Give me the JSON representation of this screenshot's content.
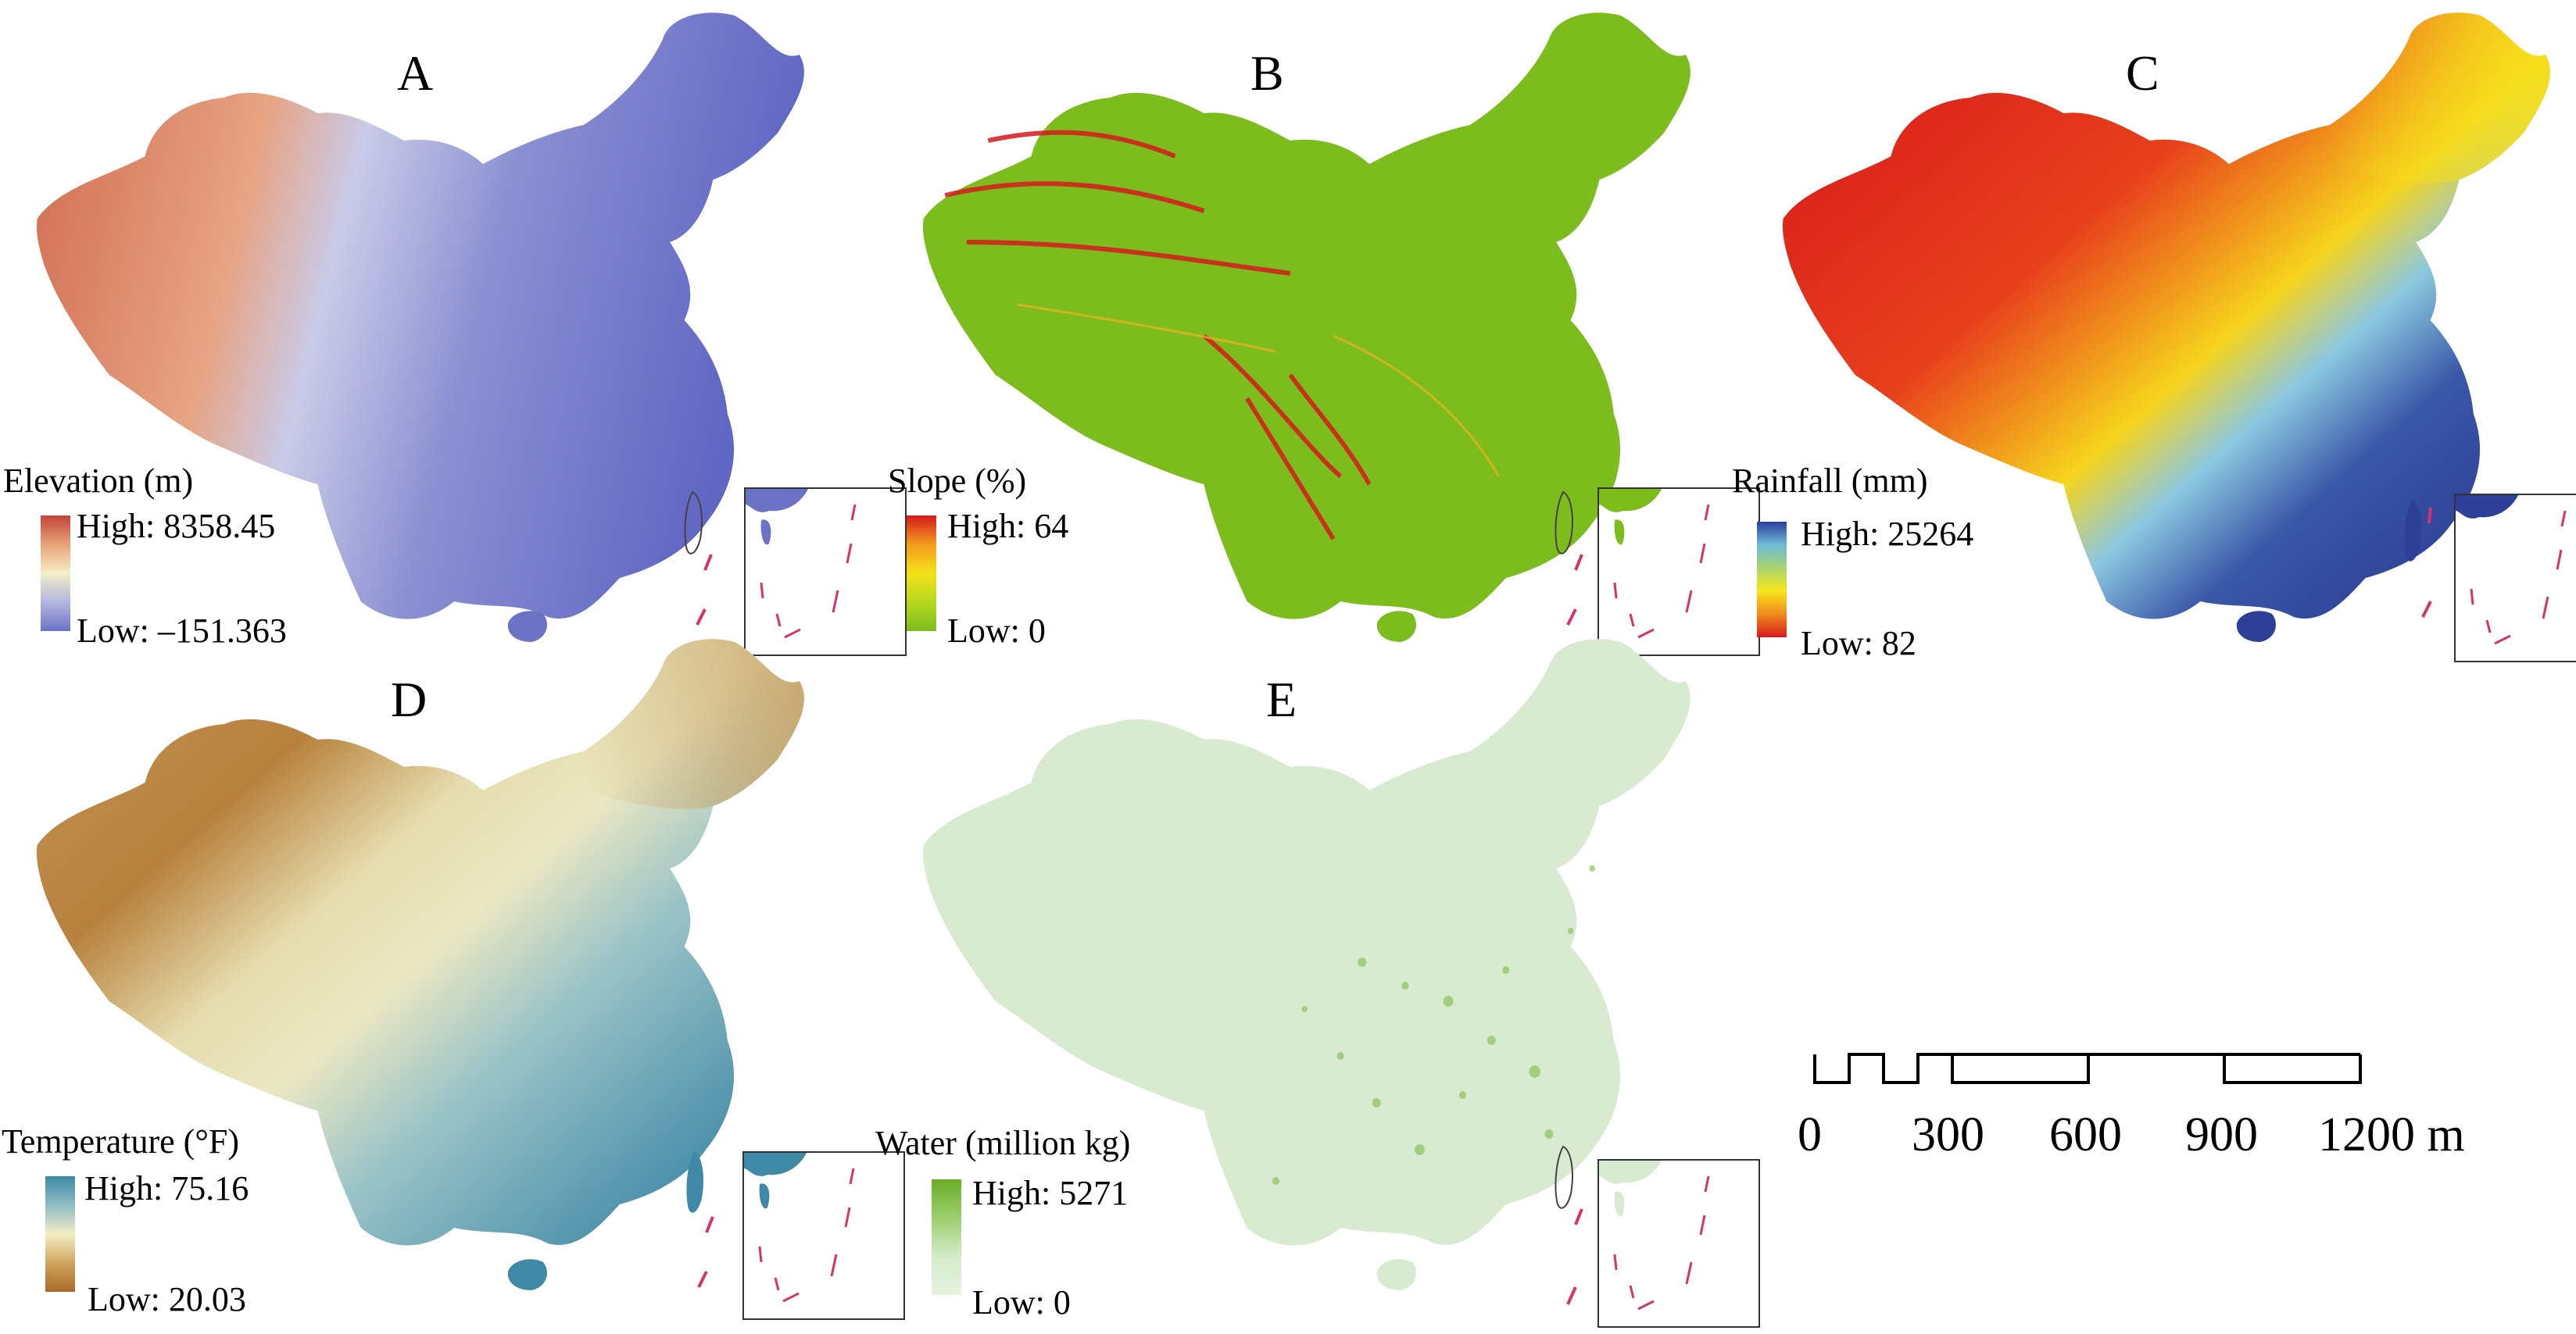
{
  "panels": [
    {
      "id": "A",
      "label": "A",
      "legend_title": "Elevation (m)",
      "high": "High: 8358.45",
      "low": "Low: –151.363",
      "gradient": [
        "#c0453a",
        "#e8a27a",
        "#f4efc6",
        "#b2b6e0",
        "#6c72c6"
      ],
      "map_fill": [
        "#d0684e",
        "#e7a484",
        "#c9cbe8",
        "#8b8fd2",
        "#6066c3"
      ]
    },
    {
      "id": "B",
      "label": "B",
      "legend_title": "Slope (%)",
      "high": "High: 64",
      "low": "Low: 0",
      "gradient": [
        "#d7191c",
        "#f39b1e",
        "#f3e21a",
        "#b6d81e",
        "#7cbc1d"
      ],
      "map_fill": [
        "#7cbc1d",
        "#86c01d",
        "#7cbc1d",
        "#7cbc1d",
        "#72b51c"
      ]
    },
    {
      "id": "C",
      "label": "C",
      "legend_title": "Rainfall (mm)",
      "high": "High: 25264",
      "low": "Low: 82",
      "gradient": [
        "#2b3f9a",
        "#6bbcd8",
        "#a9d66e",
        "#f7e51a",
        "#f08a1c",
        "#d7191c"
      ],
      "map_fill": [
        "#d7191c",
        "#f0781c",
        "#f6cf1c",
        "#8cc8e0",
        "#2e3f97"
      ]
    },
    {
      "id": "D",
      "label": "D",
      "legend_title": "Temperature (°F)",
      "high": "High: 75.16",
      "low": "Low: 20.03",
      "gradient": [
        "#3d8aa6",
        "#8fbcc3",
        "#f3efc4",
        "#d2a560",
        "#a86a26"
      ],
      "map_fill": [
        "#b8823e",
        "#d9b77a",
        "#eae7c2",
        "#9cc4c7",
        "#4b90ab"
      ]
    },
    {
      "id": "E",
      "label": "E",
      "legend_title": "Water (million kg)",
      "high": "High: 5271",
      "low": "Low: 0",
      "gradient": [
        "#6aac28",
        "#9ccf6e",
        "#d4ebca",
        "#e6f3e0"
      ],
      "map_fill": [
        "#d8ebd0",
        "#d8ebd0",
        "#cfe6c5",
        "#c5e1b8",
        "#d8ebd0"
      ]
    }
  ],
  "scale_bar": {
    "ticks": [
      "0",
      "300",
      "600",
      "900",
      "1200 m"
    ]
  },
  "colors": {
    "inset_islands": "#d6336c"
  }
}
